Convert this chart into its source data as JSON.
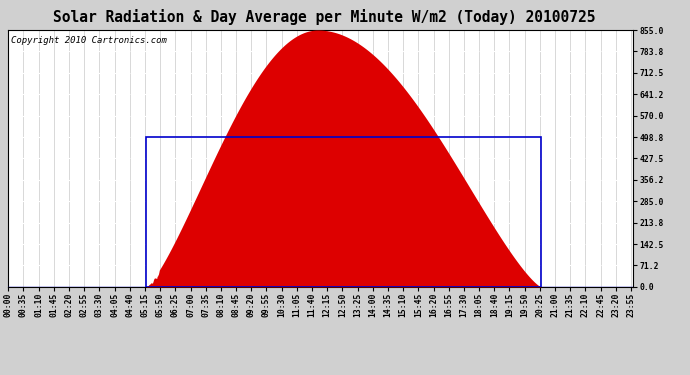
{
  "title": "Solar Radiation & Day Average per Minute W/m2 (Today) 20100725",
  "copyright": "Copyright 2010 Cartronics.com",
  "background_color": "#d0d0d0",
  "plot_bg_color": "#ffffff",
  "y_ticks": [
    0.0,
    71.2,
    142.5,
    213.8,
    285.0,
    356.2,
    427.5,
    498.8,
    570.0,
    641.2,
    712.5,
    783.8,
    855.0
  ],
  "y_max": 855.0,
  "y_min": 0.0,
  "fill_color": "#dd0000",
  "line_color": "#0000cc",
  "avg_value": 498.8,
  "sunrise_min": 317,
  "sunset_min": 1228,
  "peak_value": 855.0,
  "peak_min": 713,
  "num_points": 1440,
  "x_tick_interval": 35,
  "title_fontsize": 10.5,
  "copyright_fontsize": 6.5,
  "tick_fontsize": 5.8
}
